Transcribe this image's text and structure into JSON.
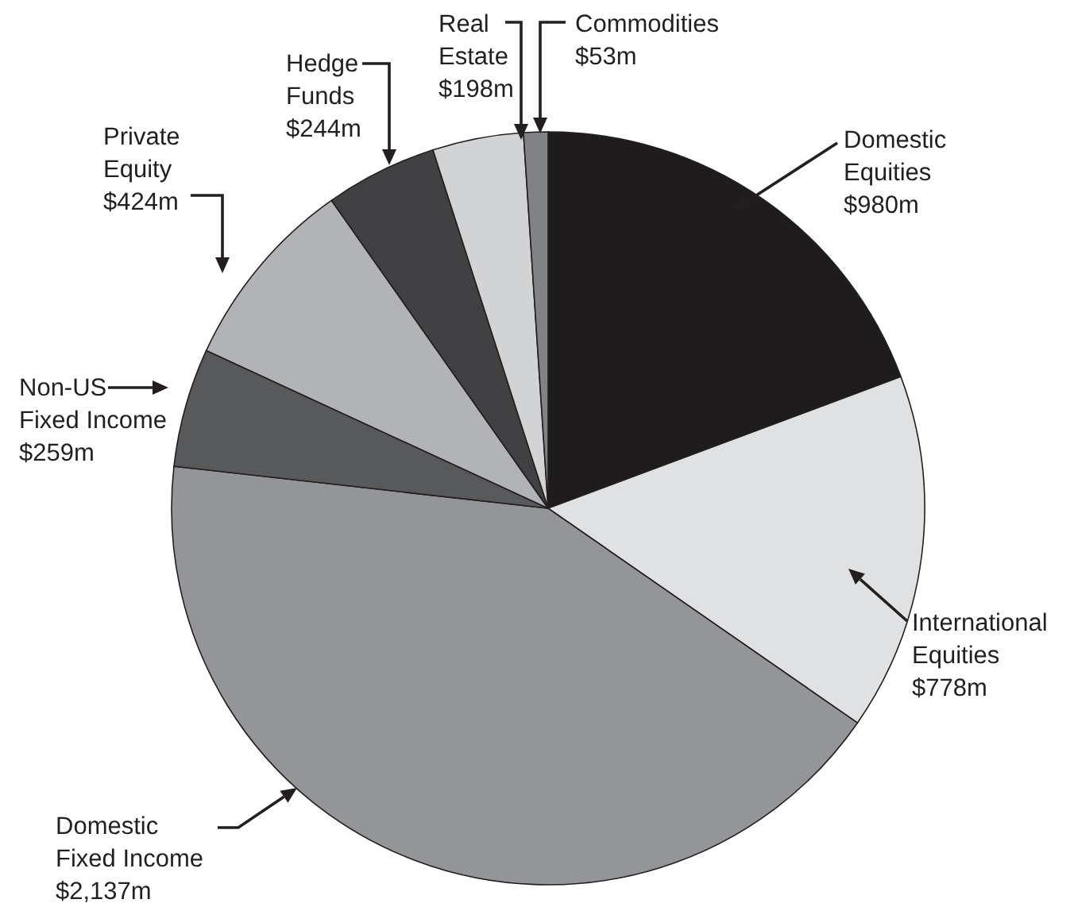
{
  "chart_data": {
    "type": "pie",
    "categories": [
      "Domestic Equities",
      "International Equities",
      "Domestic Fixed Income",
      "Non-US Fixed Income",
      "Private Equity",
      "Hedge Funds",
      "Real Estate",
      "Commodities"
    ],
    "values": [
      980,
      778,
      2137,
      259,
      424,
      244,
      198,
      53
    ],
    "value_labels": [
      "$980m",
      "$778m",
      "$2,137m",
      "$259m",
      "$424m",
      "$244m",
      "$198m",
      "$53m"
    ],
    "colors": [
      "#1e1c1d",
      "#e0e1e2",
      "#939598",
      "#58595b",
      "#b1b3b6",
      "#414042",
      "#d1d3d4",
      "#808285"
    ]
  }
}
